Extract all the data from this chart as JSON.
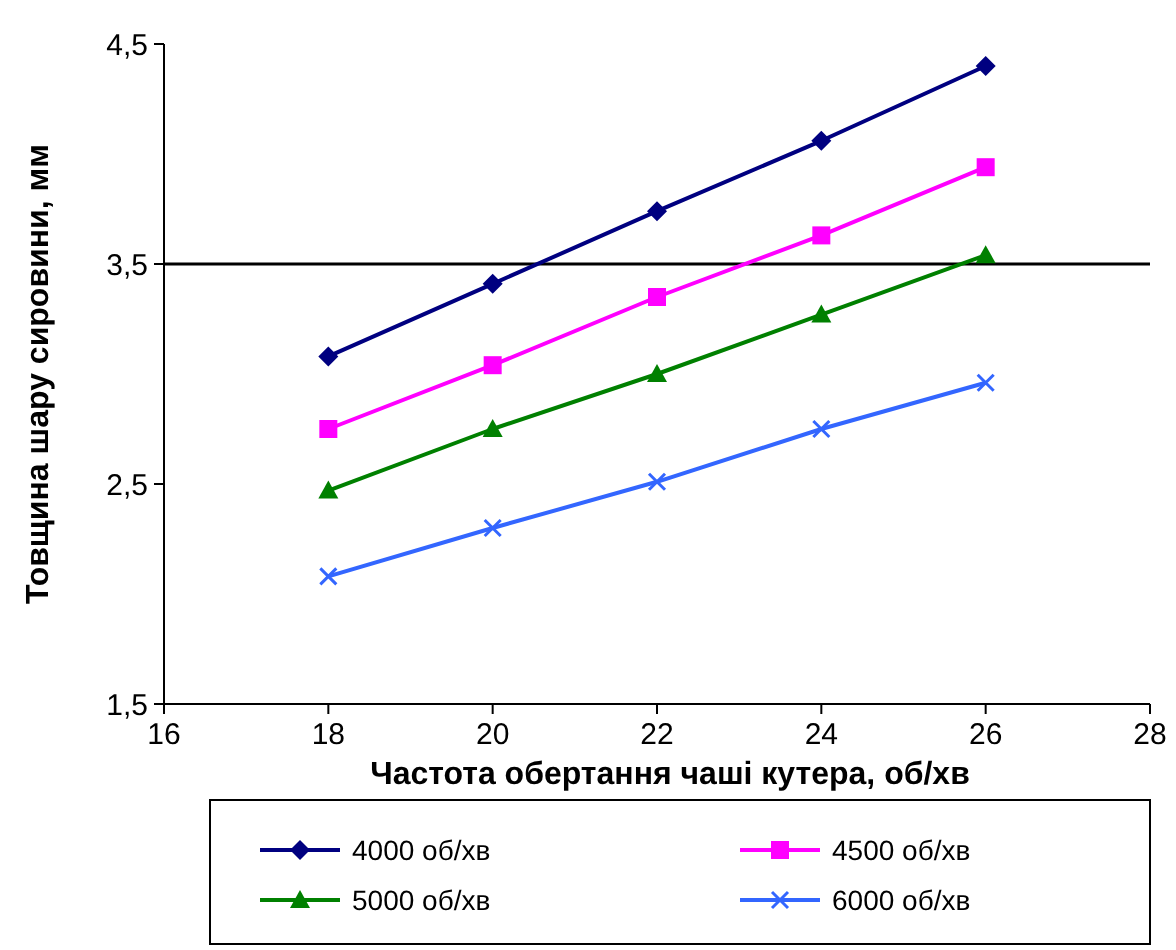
{
  "chart_data": {
    "type": "line",
    "xlabel": "Частота обертання чаші кутера, об/хв",
    "ylabel": "Товщина шару сировини, мм",
    "x": [
      18,
      20,
      22,
      24,
      26
    ],
    "xlim": [
      16,
      28
    ],
    "xticks": [
      16,
      18,
      20,
      22,
      24,
      26,
      28
    ],
    "ylim": [
      1.5,
      4.5
    ],
    "yticks": [
      {
        "value": 1.5,
        "label": "1,5"
      },
      {
        "value": 2.5,
        "label": "2,5"
      },
      {
        "value": 3.5,
        "label": "3,5"
      },
      {
        "value": 4.5,
        "label": "4,5"
      }
    ],
    "series": [
      {
        "name": "4000 об/хв",
        "color": "#000080",
        "marker": "diamond",
        "values": [
          3.08,
          3.41,
          3.74,
          4.06,
          4.4
        ]
      },
      {
        "name": "4500 об/хв",
        "color": "#ff00ff",
        "marker": "square",
        "values": [
          2.75,
          3.04,
          3.35,
          3.63,
          3.94
        ]
      },
      {
        "name": "5000 об/хв",
        "color": "#008000",
        "marker": "triangle",
        "values": [
          2.47,
          2.75,
          3.0,
          3.27,
          3.54
        ]
      },
      {
        "name": "6000 об/хв",
        "color": "#3366ff",
        "marker": "cross",
        "values": [
          2.08,
          2.3,
          2.51,
          2.75,
          2.96
        ]
      }
    ],
    "ref_lines": [
      {
        "axis": "y",
        "value": 3.5,
        "color": "#000000"
      }
    ],
    "grid": false,
    "legend": "bottom"
  }
}
